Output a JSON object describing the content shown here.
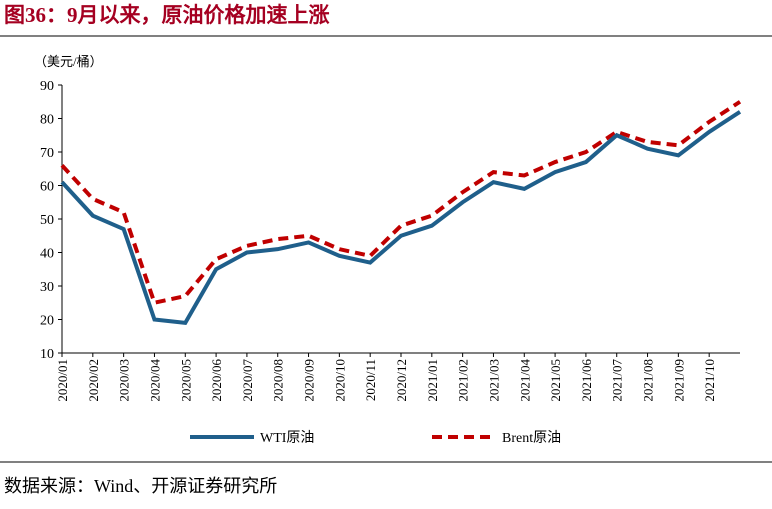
{
  "chart_data": {
    "type": "line",
    "title": "图36：9月以来，原油价格加速上涨",
    "y_label": "（美元/桶）",
    "source": "数据来源：Wind、开源证券研究所",
    "categories": [
      "2020/01",
      "2020/02",
      "2020/03",
      "2020/04",
      "2020/05",
      "2020/06",
      "2020/07",
      "2020/08",
      "2020/09",
      "2020/10",
      "2020/11",
      "2020/12",
      "2021/01",
      "2021/02",
      "2021/03",
      "2021/04",
      "2021/05",
      "2021/06",
      "2021/07",
      "2021/08",
      "2021/09",
      "2021/10",
      null
    ],
    "series": [
      {
        "name": "WTI原油",
        "color": "#1f5f8b",
        "dash": false,
        "values": [
          61,
          51,
          47,
          20,
          19,
          35,
          40,
          41,
          43,
          39,
          37,
          45,
          48,
          55,
          61,
          59,
          64,
          67,
          75,
          71,
          69,
          76,
          82
        ]
      },
      {
        "name": "Brent原油",
        "color": "#c00000",
        "dash": true,
        "values": [
          66,
          56,
          52,
          25,
          27,
          38,
          42,
          44,
          45,
          41,
          39,
          48,
          51,
          58,
          64,
          63,
          67,
          70,
          76,
          73,
          72,
          79,
          85
        ]
      }
    ],
    "ylim": [
      10,
      90
    ],
    "yticks": [
      10,
      20,
      30,
      40,
      50,
      60,
      70,
      80,
      90
    ]
  }
}
